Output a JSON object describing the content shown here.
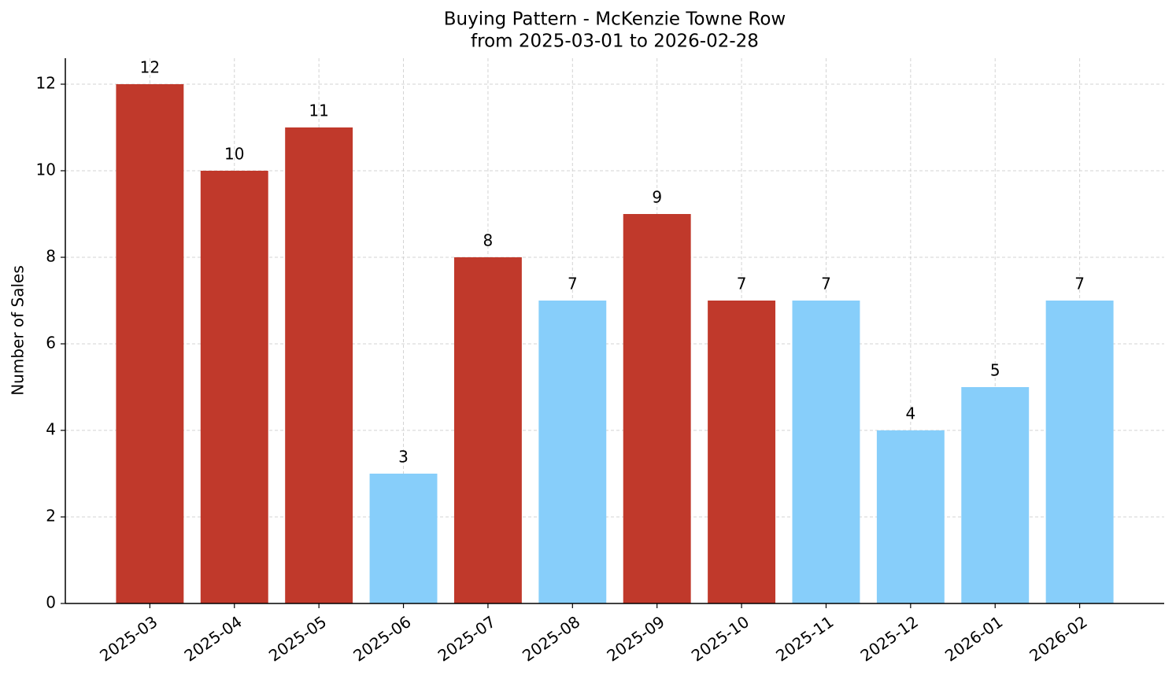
{
  "chart_data": {
    "type": "bar",
    "title": "Buying Pattern - McKenzie Towne Row",
    "subtitle": "from 2025-03-01 to 2026-02-28",
    "y_label": "Number of Sales",
    "categories": [
      "2025-03",
      "2025-04",
      "2025-05",
      "2025-06",
      "2025-07",
      "2025-08",
      "2025-09",
      "2025-10",
      "2025-11",
      "2025-12",
      "2026-01",
      "2026-02"
    ],
    "values": [
      12,
      10,
      11,
      3,
      8,
      7,
      9,
      7,
      7,
      4,
      5,
      7
    ],
    "colors": [
      "#c0392b",
      "#c0392b",
      "#c0392b",
      "#87cefa",
      "#c0392b",
      "#87cefa",
      "#c0392b",
      "#c0392b",
      "#87cefa",
      "#87cefa",
      "#87cefa",
      "#87cefa"
    ],
    "ylim": [
      0,
      12.6
    ],
    "yticks": [
      0,
      2,
      4,
      6,
      8,
      10,
      12
    ],
    "grid": true
  }
}
